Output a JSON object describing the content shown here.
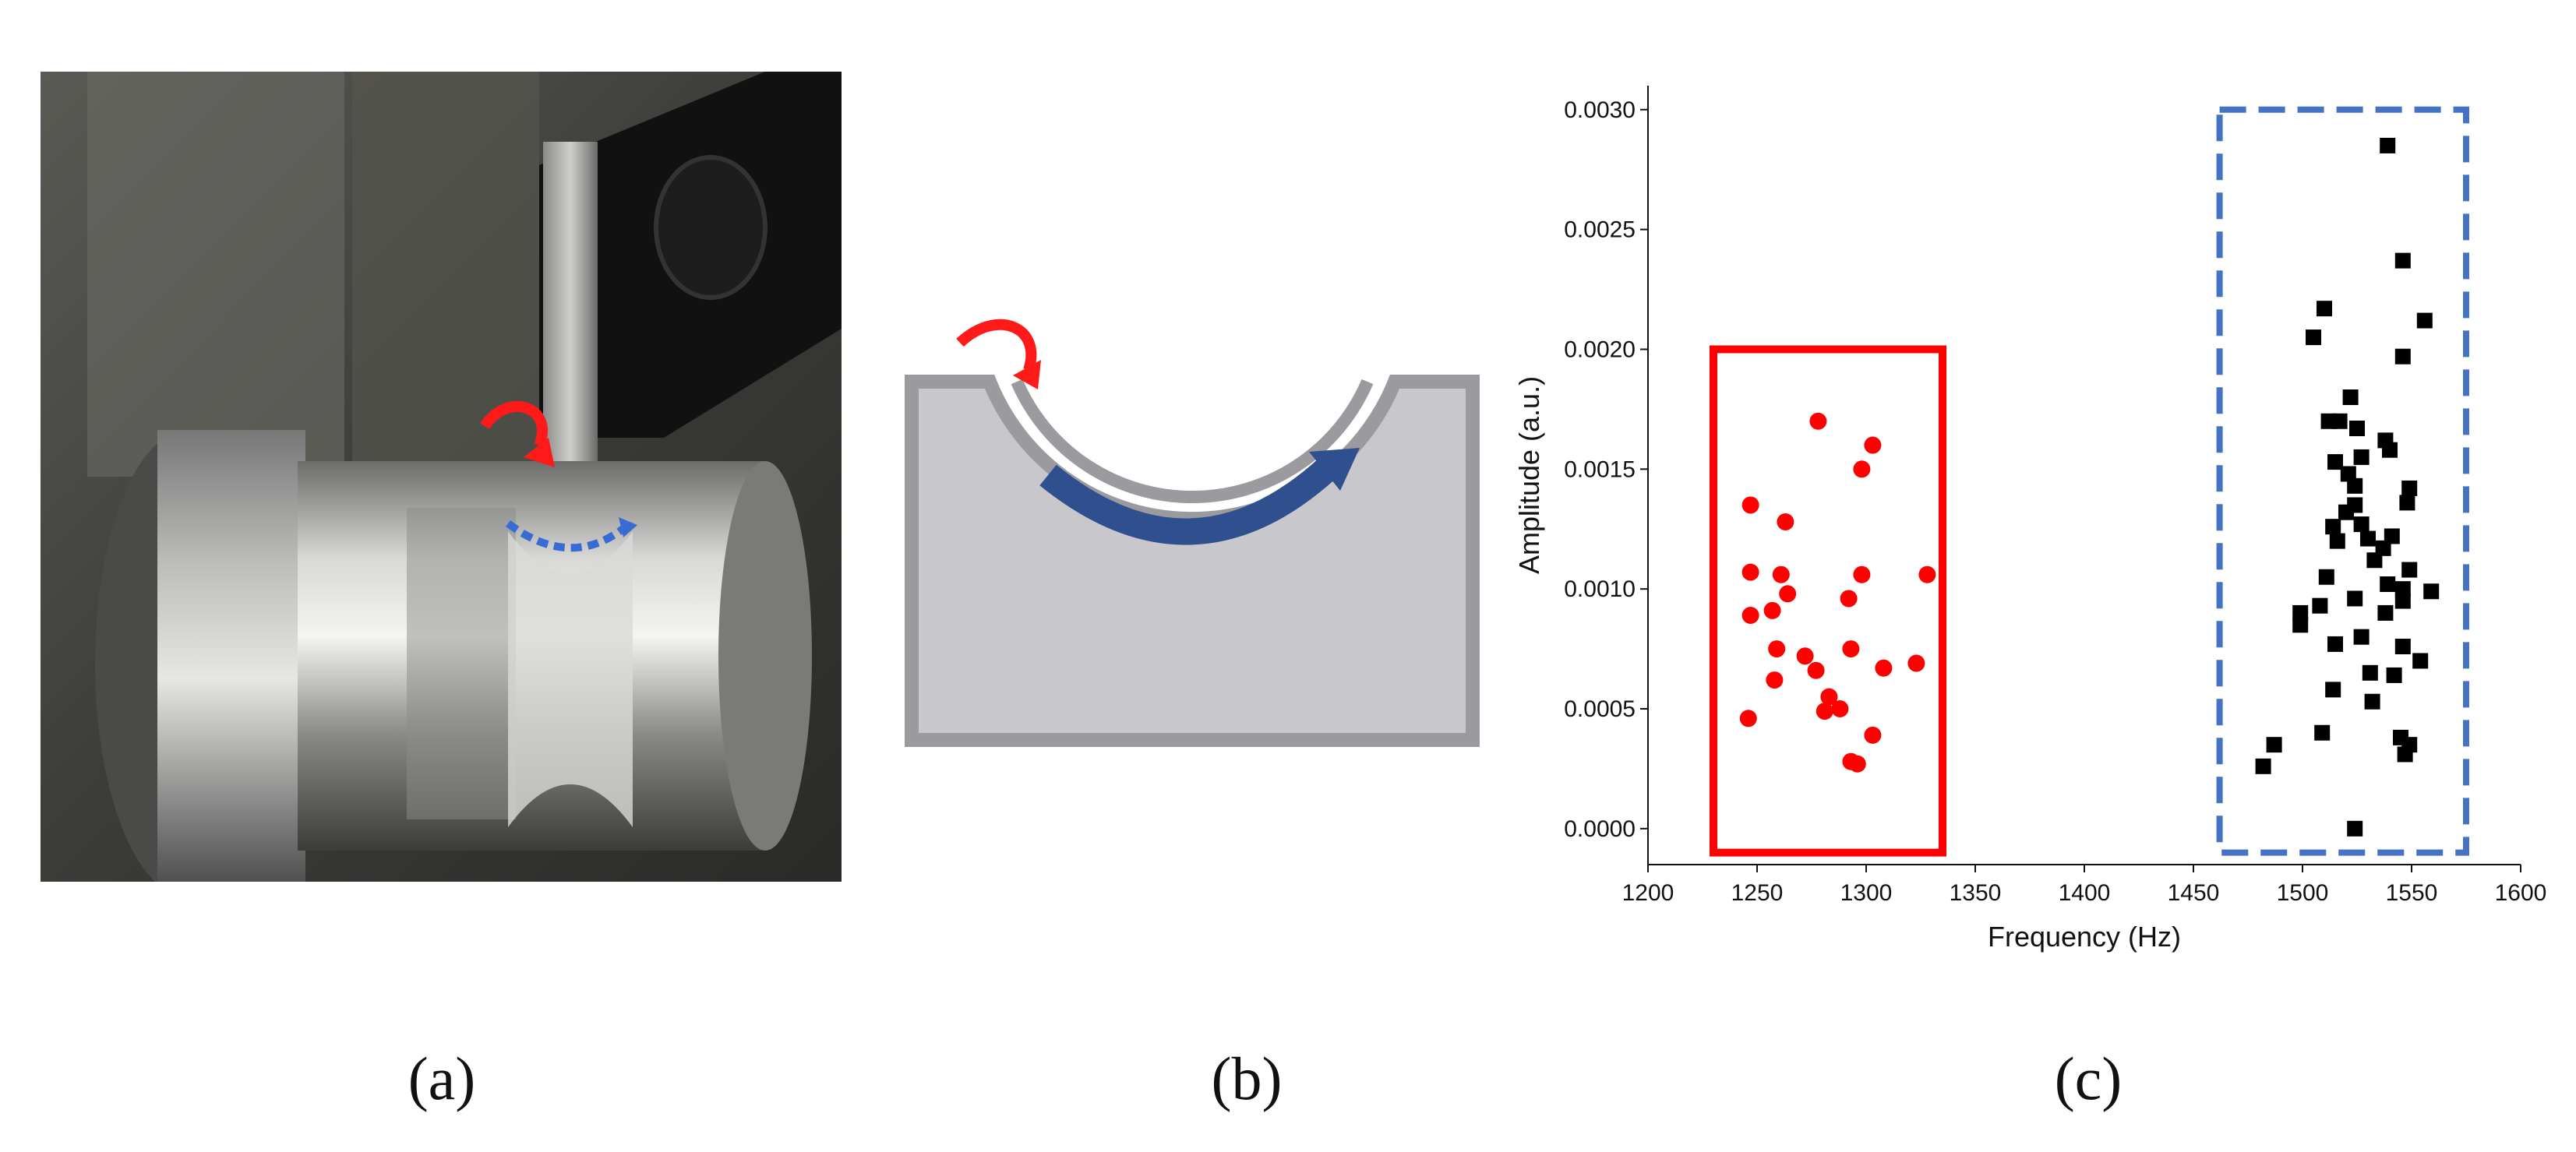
{
  "panels": {
    "a": {
      "label": "(a)"
    },
    "b": {
      "label": "(b)"
    },
    "c": {
      "label": "(c)"
    }
  },
  "colors": {
    "red_series": "#ff0000",
    "black_series": "#000000",
    "blue_box": "#4472c4",
    "diagram_fill": "#c8c8cc",
    "diagram_edge": "#9b9b9f",
    "arrow_blue": "#2f4f8f",
    "arrow_red": "#ff1a1a"
  },
  "chart_data": {
    "type": "scatter",
    "title": "",
    "xlabel": "Frequency (Hz)",
    "ylabel": "Amplitude (a.u.)",
    "xlim": [
      1200,
      1600
    ],
    "ylim": [
      -0.00015,
      0.0031
    ],
    "xticks": [
      "1200",
      "1250",
      "1300",
      "1350",
      "1400",
      "1450",
      "1500",
      "1550",
      "1600"
    ],
    "yticks": [
      "0.0000",
      "0.0005",
      "0.0010",
      "0.0015",
      "0.0020",
      "0.0025",
      "0.0030"
    ],
    "grid": false,
    "highlight_boxes": [
      {
        "style": "solid",
        "color": "red",
        "x": [
          1230,
          1335
        ],
        "y": [
          -0.0001,
          0.002
        ]
      },
      {
        "style": "dashed",
        "color": "blue",
        "x": [
          1462,
          1575
        ],
        "y": [
          -0.0001,
          0.003
        ]
      }
    ],
    "series": [
      {
        "marker": "circle",
        "color": "red",
        "points": [
          [
            1278,
            0.0017
          ],
          [
            1303,
            0.0016
          ],
          [
            1298,
            0.0015
          ],
          [
            1247,
            0.00135
          ],
          [
            1263,
            0.00128
          ],
          [
            1247,
            0.00107
          ],
          [
            1261,
            0.00106
          ],
          [
            1298,
            0.00106
          ],
          [
            1328,
            0.00106
          ],
          [
            1264,
            0.00098
          ],
          [
            1292,
            0.00096
          ],
          [
            1257,
            0.00091
          ],
          [
            1247,
            0.00089
          ],
          [
            1259,
            0.00075
          ],
          [
            1293,
            0.00075
          ],
          [
            1272,
            0.00072
          ],
          [
            1323,
            0.00069
          ],
          [
            1308,
            0.00067
          ],
          [
            1277,
            0.00066
          ],
          [
            1258,
            0.00062
          ],
          [
            1283,
            0.00055
          ],
          [
            1288,
            0.0005
          ],
          [
            1281,
            0.00049
          ],
          [
            1246,
            0.00046
          ],
          [
            1303,
            0.00039
          ],
          [
            1293,
            0.00028
          ],
          [
            1296,
            0.00027
          ]
        ]
      },
      {
        "marker": "square",
        "color": "black",
        "points": [
          [
            1539,
            0.00285
          ],
          [
            1546,
            0.00237
          ],
          [
            1556,
            0.00212
          ],
          [
            1510,
            0.00217
          ],
          [
            1505,
            0.00205
          ],
          [
            1546,
            0.00197
          ],
          [
            1522,
            0.0018
          ],
          [
            1512,
            0.0017
          ],
          [
            1517,
            0.0017
          ],
          [
            1525,
            0.00167
          ],
          [
            1538,
            0.00162
          ],
          [
            1540,
            0.00158
          ],
          [
            1527,
            0.00155
          ],
          [
            1515,
            0.00153
          ],
          [
            1521,
            0.00148
          ],
          [
            1524,
            0.00143
          ],
          [
            1549,
            0.00142
          ],
          [
            1548,
            0.00136
          ],
          [
            1524,
            0.00135
          ],
          [
            1520,
            0.00132
          ],
          [
            1527,
            0.00127
          ],
          [
            1514,
            0.00126
          ],
          [
            1541,
            0.00122
          ],
          [
            1530,
            0.00121
          ],
          [
            1516,
            0.0012
          ],
          [
            1537,
            0.00117
          ],
          [
            1533,
            0.00112
          ],
          [
            1549,
            0.00108
          ],
          [
            1511,
            0.00105
          ],
          [
            1539,
            0.00102
          ],
          [
            1546,
            0.001
          ],
          [
            1559,
            0.00099
          ],
          [
            1524,
            0.00096
          ],
          [
            1508,
            0.00093
          ],
          [
            1546,
            0.00095
          ],
          [
            1538,
            0.0009
          ],
          [
            1499,
            0.0009
          ],
          [
            1499,
            0.00085
          ],
          [
            1527,
            0.0008
          ],
          [
            1515,
            0.00077
          ],
          [
            1546,
            0.00076
          ],
          [
            1554,
            0.0007
          ],
          [
            1531,
            0.00065
          ],
          [
            1542,
            0.00064
          ],
          [
            1514,
            0.00058
          ],
          [
            1532,
            0.00053
          ],
          [
            1509,
            0.0004
          ],
          [
            1487,
            0.00035
          ],
          [
            1545,
            0.00038
          ],
          [
            1549,
            0.00035
          ],
          [
            1547,
            0.00031
          ],
          [
            1482,
            0.00026
          ],
          [
            1524,
            0.0
          ]
        ]
      }
    ]
  }
}
